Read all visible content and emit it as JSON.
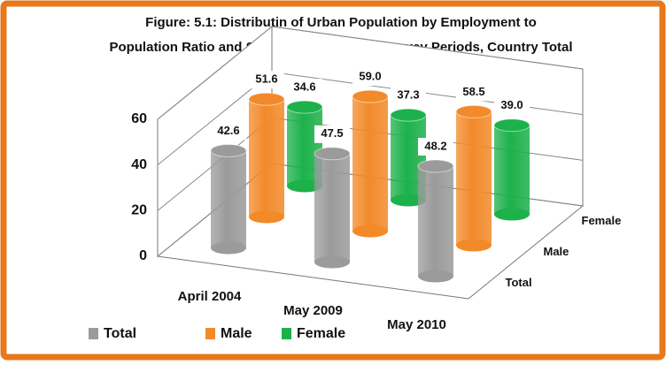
{
  "chart_data": {
    "type": "bar3d",
    "title": [
      "Figure: 5.1: Distributin of Urban Population by Employment to",
      "Population Ratio and Sex  During the Three Survey Periods, Country Total"
    ],
    "categories": [
      "April 2004",
      "May 2009",
      "May 2010"
    ],
    "series": [
      {
        "name": "Total",
        "color": "#9b9b9b",
        "values": [
          42.6,
          47.5,
          48.2
        ],
        "value_labels": [
          "42.6",
          "47.5",
          "48.2"
        ]
      },
      {
        "name": "Male",
        "color": "#f28a2a",
        "values": [
          51.6,
          59.0,
          58.5
        ],
        "value_labels": [
          "51.6",
          "59.0",
          "58.5"
        ]
      },
      {
        "name": "Female",
        "color": "#1db14b",
        "values": [
          34.6,
          37.3,
          39.0
        ],
        "value_labels": [
          "34.6",
          "37.3",
          "39.0"
        ]
      }
    ],
    "ylim": [
      0,
      60
    ],
    "yticks": [
      0,
      20,
      40,
      60
    ],
    "grid": true,
    "legend": "bottom-left"
  }
}
